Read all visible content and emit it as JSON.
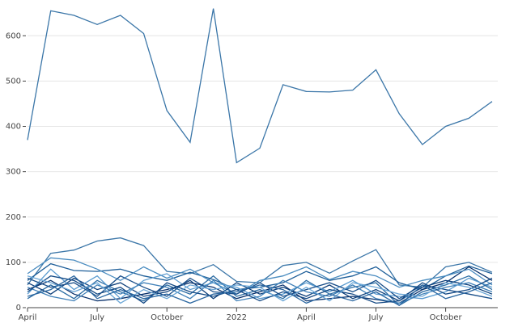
{
  "chart_data": {
    "type": "line",
    "x": [
      "2021-04",
      "2021-05",
      "2021-06",
      "2021-07",
      "2021-08",
      "2021-09",
      "2021-10",
      "2021-11",
      "2021-12",
      "2022-01",
      "2022-02",
      "2022-03",
      "2022-04",
      "2022-05",
      "2022-06",
      "2022-07",
      "2022-08",
      "2022-09",
      "2022-10",
      "2022-11",
      "2022-12"
    ],
    "xlim": [
      "2021-04",
      "2022-12"
    ],
    "xticks": [
      {
        "value": "2021-04",
        "label": "April"
      },
      {
        "value": "2021-07",
        "label": "July"
      },
      {
        "value": "2021-10",
        "label": "October"
      },
      {
        "value": "2022-01",
        "label": "2022"
      },
      {
        "value": "2022-04",
        "label": "April"
      },
      {
        "value": "2022-07",
        "label": "July"
      },
      {
        "value": "2022-10",
        "label": "October"
      }
    ],
    "ylim": [
      0,
      670
    ],
    "yticks": [
      0,
      100,
      200,
      300,
      400,
      500,
      600
    ],
    "grid": true,
    "series": [
      {
        "color": "#3b76a8",
        "values": [
          370,
          655,
          645,
          625,
          645,
          605,
          435,
          365,
          660,
          320,
          352,
          492,
          477,
          476,
          480,
          525,
          428,
          360,
          400,
          418,
          455
        ]
      },
      {
        "color": "#3b76a8",
        "values": [
          50,
          120,
          127,
          147,
          154,
          137,
          80,
          75,
          95,
          58,
          55,
          93,
          100,
          76,
          103,
          128,
          50,
          45,
          90,
          100,
          78
        ]
      },
      {
        "color": "#1f5f99",
        "values": [
          60,
          97,
          82,
          80,
          85,
          70,
          60,
          78,
          62,
          40,
          45,
          55,
          80,
          60,
          70,
          90,
          55,
          40,
          70,
          92,
          75
        ]
      },
      {
        "color": "#08306b",
        "values": [
          40,
          60,
          30,
          15,
          20,
          30,
          40,
          55,
          45,
          20,
          35,
          50,
          15,
          20,
          25,
          18,
          10,
          40,
          55,
          90,
          60
        ]
      },
      {
        "color": "#4a8cc0",
        "values": [
          75,
          110,
          105,
          85,
          60,
          90,
          65,
          85,
          55,
          30,
          60,
          70,
          90,
          62,
          80,
          70,
          45,
          60,
          70,
          85,
          50
        ]
      },
      {
        "color": "#2b6ca3",
        "values": [
          20,
          50,
          20,
          60,
          35,
          15,
          50,
          30,
          70,
          25,
          40,
          20,
          60,
          30,
          45,
          55,
          5,
          35,
          50,
          70,
          40
        ]
      },
      {
        "color": "#0d3f7a",
        "values": [
          55,
          30,
          65,
          40,
          55,
          25,
          35,
          60,
          20,
          55,
          30,
          45,
          25,
          50,
          20,
          40,
          15,
          45,
          60,
          50,
          30
        ]
      },
      {
        "color": "#5a9bd0",
        "values": [
          30,
          85,
          40,
          70,
          20,
          60,
          75,
          40,
          55,
          45,
          20,
          30,
          55,
          35,
          60,
          30,
          25,
          20,
          35,
          65,
          45
        ]
      },
      {
        "color": "#1a4f8a",
        "values": [
          65,
          45,
          55,
          25,
          70,
          45,
          25,
          65,
          35,
          30,
          55,
          25,
          40,
          55,
          35,
          60,
          20,
          50,
          40,
          30,
          20
        ]
      },
      {
        "color": "#3f80b8",
        "values": [
          45,
          25,
          15,
          50,
          30,
          55,
          45,
          20,
          60,
          15,
          25,
          60,
          35,
          25,
          50,
          20,
          10,
          30,
          45,
          55,
          35
        ]
      },
      {
        "color": "#154a85",
        "values": [
          35,
          70,
          60,
          30,
          45,
          10,
          55,
          35,
          25,
          40,
          15,
          35,
          20,
          40,
          30,
          10,
          15,
          55,
          30,
          40,
          65
        ]
      },
      {
        "color": "#6aa6d6",
        "values": [
          70,
          55,
          35,
          55,
          10,
          40,
          20,
          50,
          40,
          50,
          45,
          15,
          45,
          15,
          55,
          45,
          30,
          25,
          55,
          45,
          25
        ]
      },
      {
        "color": "#2a66a0",
        "values": [
          25,
          40,
          70,
          20,
          40,
          20,
          30,
          10,
          30,
          35,
          50,
          40,
          10,
          30,
          15,
          35,
          5,
          50,
          20,
          35,
          55
        ]
      }
    ]
  }
}
